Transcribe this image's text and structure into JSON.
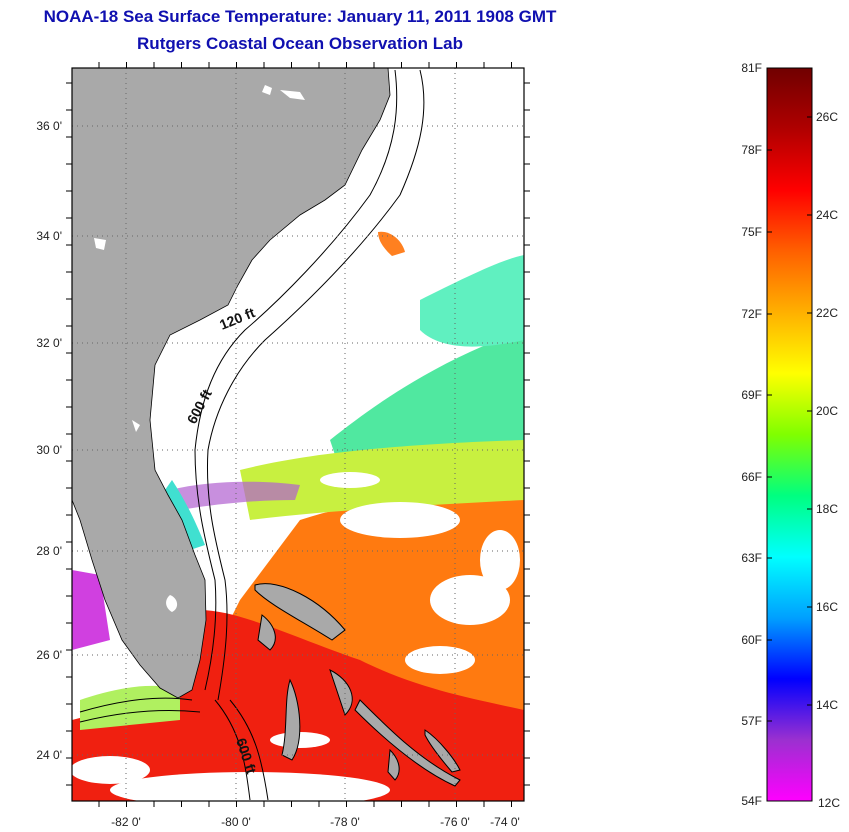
{
  "title_line1": "NOAA-18 Sea Surface Temperature:  January 11, 2011 1908 GMT",
  "title_line2": "Rutgers Coastal Ocean Observation Lab",
  "map": {
    "lon_labels": [
      "-82 0'",
      "-80 0'",
      "-78 0'",
      "-76 0'",
      "-74 0'"
    ],
    "lat_labels": [
      "36 0'",
      "34 0'",
      "32 0'",
      "30 0'",
      "28 0'",
      "26 0'",
      "24 0'"
    ],
    "depth_labels": [
      "120 ft",
      "600 ft",
      "600 ft"
    ],
    "colors": {
      "land": "#a9a9a9",
      "cloud": "#ffffff",
      "frame": "#000000"
    }
  },
  "colorbar": {
    "f_labels": [
      "81F",
      "78F",
      "75F",
      "72F",
      "69F",
      "66F",
      "63F",
      "60F",
      "57F",
      "54F"
    ],
    "c_labels": [
      "26C",
      "24C",
      "22C",
      "20C",
      "18C",
      "16C",
      "14C",
      "12C"
    ],
    "gradient": [
      "#ff00ff",
      "#9b30d0",
      "#0000ff",
      "#00a0ff",
      "#00ffff",
      "#00ff80",
      "#80ff00",
      "#ffff00",
      "#ffb000",
      "#ff6000",
      "#ff0000",
      "#b00000",
      "#700000"
    ]
  }
}
